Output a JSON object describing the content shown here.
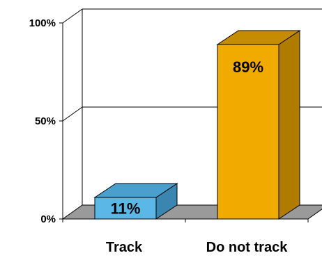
{
  "chart_data": {
    "type": "bar",
    "categories": [
      "Track",
      "Do not track"
    ],
    "values": [
      11,
      89
    ],
    "data_labels": [
      "11%",
      "89%"
    ],
    "ylim": [
      0,
      100
    ],
    "yticks": [
      {
        "value": 0,
        "label": "0%"
      },
      {
        "value": 50,
        "label": "50%"
      },
      {
        "value": 100,
        "label": "100%"
      }
    ],
    "grid": true,
    "legend": "none",
    "colors": {
      "bars": [
        "#5bb8e6",
        "#f0aa00"
      ],
      "bar_sides": [
        "#3a86b0",
        "#b07c00"
      ],
      "bar_tops": [
        "#4a9fcc",
        "#c68c00"
      ],
      "floor": "#9a9a9a",
      "gridline": "#000000"
    },
    "style": "3d-column"
  }
}
